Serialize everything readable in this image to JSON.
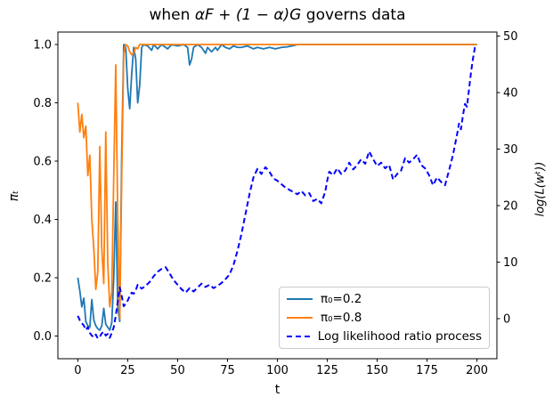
{
  "title": {
    "pre": "when ",
    "math": "αF + (1 − α)G",
    "post": " governs data"
  },
  "axes": {
    "x": {
      "label": "t",
      "tick_labels": [
        "0",
        "25",
        "50",
        "75",
        "100",
        "125",
        "150",
        "175",
        "200"
      ],
      "tick_values": [
        0,
        25,
        50,
        75,
        100,
        125,
        150,
        175,
        200
      ],
      "range": [
        -10,
        210
      ]
    },
    "y_left": {
      "label": "πₜ",
      "tick_labels": [
        "0.0",
        "0.2",
        "0.4",
        "0.6",
        "0.8",
        "1.0"
      ],
      "tick_values": [
        0,
        0.2,
        0.4,
        0.6,
        0.8,
        1.0
      ],
      "range": [
        -0.0779,
        1.0427
      ]
    },
    "y_right": {
      "label": "log(L(wᵗ))",
      "tick_labels": [
        "0",
        "10",
        "20",
        "30",
        "40",
        "50"
      ],
      "tick_values": [
        0,
        10,
        20,
        30,
        40,
        50
      ],
      "range": [
        -7.09,
        50.71
      ]
    }
  },
  "legend": {
    "items": [
      {
        "label": "π₀=0.2",
        "color": "#1f77b4",
        "dashed": false
      },
      {
        "label": "π₀=0.8",
        "color": "#ff7f0e",
        "dashed": false
      },
      {
        "label": "Log likelihood ratio process",
        "color": "#0000ff",
        "dashed": true
      }
    ]
  },
  "colors": {
    "pi02": "#1f77b4",
    "pi08": "#ff7f0e",
    "llr": "#0000ff",
    "spine": "#000000"
  },
  "chart_data": {
    "type": "line",
    "title": "when αF + (1 − α)G governs data",
    "xlabel": "t",
    "ylabel_left": "πₜ",
    "ylabel_right": "log(L(wᵗ))",
    "xlim": [
      -10,
      210
    ],
    "ylim_left": [
      -0.0779,
      1.0427
    ],
    "ylim_right": [
      -7.09,
      50.71
    ],
    "grid": false,
    "legend_position": "lower right",
    "series": [
      {
        "name": "π₀=0.2",
        "axis": "left",
        "color": "#1f77b4",
        "style": "solid",
        "width": 1.8,
        "points": [
          [
            0,
            0.2
          ],
          [
            1,
            0.155
          ],
          [
            2,
            0.1
          ],
          [
            3,
            0.13
          ],
          [
            4,
            0.05
          ],
          [
            5,
            0.035
          ],
          [
            6,
            0.03
          ],
          [
            7,
            0.125
          ],
          [
            8,
            0.055
          ],
          [
            9,
            0.035
          ],
          [
            10,
            0.025
          ],
          [
            11,
            0.02
          ],
          [
            12,
            0.035
          ],
          [
            13,
            0.095
          ],
          [
            14,
            0.04
          ],
          [
            15,
            0.03
          ],
          [
            16,
            0.02
          ],
          [
            17,
            0.045
          ],
          [
            18,
            0.2
          ],
          [
            19,
            0.46
          ],
          [
            20,
            0.1
          ],
          [
            21,
            0.05
          ],
          [
            22,
            0.63
          ],
          [
            23,
            1.0
          ],
          [
            24,
            0.99
          ],
          [
            25,
            0.85
          ],
          [
            26,
            0.78
          ],
          [
            27,
            0.9
          ],
          [
            28,
            0.99
          ],
          [
            29,
            0.95
          ],
          [
            30,
            0.8
          ],
          [
            31,
            0.86
          ],
          [
            32,
            0.99
          ],
          [
            33,
            1.0
          ],
          [
            35,
            0.995
          ],
          [
            37,
            0.98
          ],
          [
            38,
            1.0
          ],
          [
            40,
            0.985
          ],
          [
            42,
            1.0
          ],
          [
            44,
            0.99
          ],
          [
            45,
            0.985
          ],
          [
            47,
            1.0
          ],
          [
            50,
            0.995
          ],
          [
            53,
            1.0
          ],
          [
            55,
            0.99
          ],
          [
            56,
            0.93
          ],
          [
            57,
            0.95
          ],
          [
            58,
            0.99
          ],
          [
            60,
            1.0
          ],
          [
            62,
            0.99
          ],
          [
            64,
            0.97
          ],
          [
            65,
            0.99
          ],
          [
            67,
            0.975
          ],
          [
            69,
            0.99
          ],
          [
            70,
            0.98
          ],
          [
            72,
            1.0
          ],
          [
            74,
            0.99
          ],
          [
            76,
            0.985
          ],
          [
            78,
            0.995
          ],
          [
            80,
            0.99
          ],
          [
            82,
            0.99
          ],
          [
            85,
            0.995
          ],
          [
            88,
            0.985
          ],
          [
            90,
            0.99
          ],
          [
            93,
            0.985
          ],
          [
            96,
            0.99
          ],
          [
            99,
            0.985
          ],
          [
            102,
            0.99
          ],
          [
            105,
            0.992
          ],
          [
            108,
            0.996
          ],
          [
            110,
            1.0
          ],
          [
            200,
            1.0
          ]
        ]
      },
      {
        "name": "π₀=0.8",
        "axis": "left",
        "color": "#ff7f0e",
        "style": "solid",
        "width": 1.8,
        "points": [
          [
            0,
            0.8
          ],
          [
            1,
            0.7
          ],
          [
            2,
            0.76
          ],
          [
            3,
            0.68
          ],
          [
            4,
            0.72
          ],
          [
            5,
            0.55
          ],
          [
            6,
            0.62
          ],
          [
            7,
            0.4
          ],
          [
            8,
            0.3
          ],
          [
            9,
            0.16
          ],
          [
            10,
            0.22
          ],
          [
            11,
            0.65
          ],
          [
            12,
            0.3
          ],
          [
            13,
            0.18
          ],
          [
            14,
            0.7
          ],
          [
            15,
            0.25
          ],
          [
            16,
            0.1
          ],
          [
            17,
            0.15
          ],
          [
            18,
            0.55
          ],
          [
            19,
            0.93
          ],
          [
            20,
            0.4
          ],
          [
            21,
            0.06
          ],
          [
            22,
            0.55
          ],
          [
            23,
            0.97
          ],
          [
            24,
            1.0
          ],
          [
            25,
            0.995
          ],
          [
            26,
            0.975
          ],
          [
            27,
            0.965
          ],
          [
            28,
            0.97
          ],
          [
            29,
            0.99
          ],
          [
            30,
            0.985
          ],
          [
            31,
            1.0
          ],
          [
            200,
            1.0
          ]
        ]
      },
      {
        "name": "Log likelihood ratio process",
        "axis": "right",
        "color": "#0000ff",
        "style": "dashed",
        "width": 2,
        "points": [
          [
            0,
            0.5
          ],
          [
            1,
            -0.3
          ],
          [
            2,
            -0.8
          ],
          [
            3,
            -1.2
          ],
          [
            4,
            -2.0
          ],
          [
            5,
            -1.5
          ],
          [
            6,
            -2.5
          ],
          [
            7,
            -3.0
          ],
          [
            8,
            -3.3
          ],
          [
            9,
            -2.8
          ],
          [
            10,
            -3.5
          ],
          [
            11,
            -3.2
          ],
          [
            12,
            -2.6
          ],
          [
            13,
            -2.3
          ],
          [
            14,
            -3.0
          ],
          [
            15,
            -2.7
          ],
          [
            16,
            -3.4
          ],
          [
            17,
            -2.5
          ],
          [
            18,
            -1.5
          ],
          [
            19,
            0.5
          ],
          [
            20,
            3.0
          ],
          [
            21,
            5.5
          ],
          [
            22,
            4.0
          ],
          [
            23,
            2.2
          ],
          [
            24,
            2.6
          ],
          [
            25,
            3.2
          ],
          [
            26,
            4.0
          ],
          [
            27,
            4.6
          ],
          [
            28,
            4.4
          ],
          [
            29,
            5.0
          ],
          [
            30,
            6.0
          ],
          [
            32,
            5.3
          ],
          [
            34,
            5.8
          ],
          [
            36,
            6.5
          ],
          [
            38,
            7.5
          ],
          [
            40,
            8.3
          ],
          [
            42,
            8.8
          ],
          [
            44,
            9.1
          ],
          [
            46,
            8.0
          ],
          [
            48,
            6.8
          ],
          [
            50,
            6.0
          ],
          [
            52,
            5.2
          ],
          [
            54,
            4.6
          ],
          [
            56,
            5.4
          ],
          [
            58,
            4.8
          ],
          [
            60,
            5.5
          ],
          [
            62,
            6.2
          ],
          [
            64,
            5.6
          ],
          [
            66,
            6.0
          ],
          [
            68,
            5.4
          ],
          [
            70,
            5.8
          ],
          [
            72,
            6.3
          ],
          [
            74,
            7.0
          ],
          [
            76,
            7.8
          ],
          [
            78,
            9.5
          ],
          [
            80,
            12.0
          ],
          [
            82,
            15.0
          ],
          [
            84,
            18.5
          ],
          [
            86,
            22.0
          ],
          [
            88,
            25.0
          ],
          [
            90,
            26.5
          ],
          [
            92,
            25.6
          ],
          [
            94,
            26.8
          ],
          [
            96,
            26.0
          ],
          [
            98,
            24.8
          ],
          [
            100,
            24.4
          ],
          [
            102,
            23.8
          ],
          [
            104,
            23.2
          ],
          [
            106,
            22.8
          ],
          [
            108,
            22.4
          ],
          [
            110,
            22.0
          ],
          [
            112,
            22.6
          ],
          [
            114,
            21.8
          ],
          [
            116,
            22.2
          ],
          [
            118,
            20.8
          ],
          [
            120,
            21.2
          ],
          [
            122,
            20.4
          ],
          [
            124,
            22.5
          ],
          [
            125,
            24.5
          ],
          [
            126,
            26.0
          ],
          [
            128,
            25.4
          ],
          [
            130,
            26.6
          ],
          [
            132,
            25.6
          ],
          [
            134,
            26.2
          ],
          [
            136,
            27.6
          ],
          [
            138,
            26.4
          ],
          [
            140,
            27.2
          ],
          [
            142,
            28.2
          ],
          [
            144,
            27.4
          ],
          [
            146,
            29.6
          ],
          [
            148,
            28.2
          ],
          [
            150,
            27.0
          ],
          [
            152,
            27.6
          ],
          [
            154,
            26.6
          ],
          [
            156,
            27.2
          ],
          [
            158,
            24.6
          ],
          [
            160,
            25.6
          ],
          [
            162,
            26.2
          ],
          [
            164,
            28.4
          ],
          [
            166,
            27.6
          ],
          [
            168,
            28.2
          ],
          [
            170,
            29.0
          ],
          [
            172,
            27.2
          ],
          [
            174,
            26.6
          ],
          [
            176,
            25.4
          ],
          [
            178,
            23.6
          ],
          [
            180,
            25.0
          ],
          [
            182,
            24.2
          ],
          [
            184,
            23.6
          ],
          [
            186,
            26.2
          ],
          [
            188,
            29.0
          ],
          [
            190,
            32.5
          ],
          [
            191,
            34.5
          ],
          [
            192,
            33.5
          ],
          [
            193,
            36.0
          ],
          [
            194,
            38.0
          ],
          [
            195,
            37.5
          ],
          [
            196,
            40.5
          ],
          [
            197,
            43.5
          ],
          [
            198,
            46.0
          ],
          [
            199,
            48.0
          ],
          [
            200,
            48.5
          ]
        ]
      }
    ]
  }
}
